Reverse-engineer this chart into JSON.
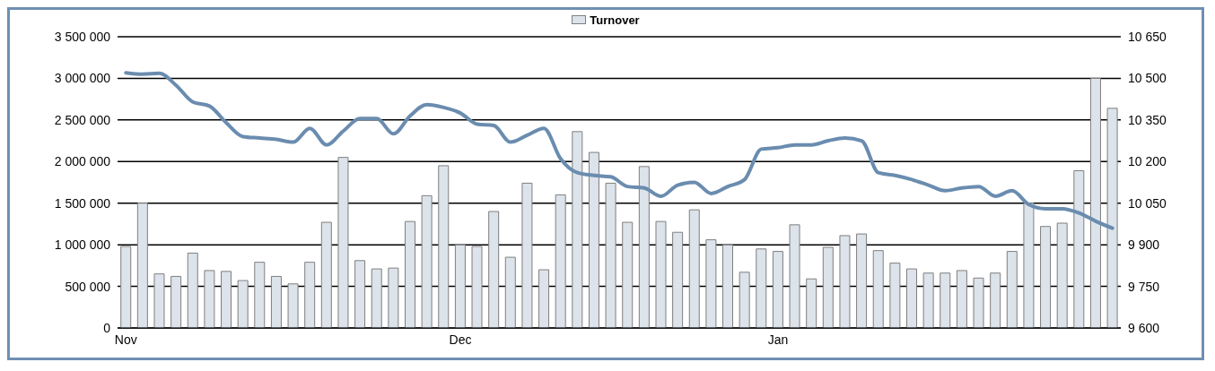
{
  "chart_data": {
    "type": "bar",
    "categories": [
      "Nov",
      null,
      null,
      null,
      null,
      null,
      null,
      null,
      null,
      null,
      null,
      null,
      null,
      null,
      null,
      null,
      null,
      null,
      null,
      null,
      "Dec",
      null,
      null,
      null,
      null,
      null,
      null,
      null,
      null,
      null,
      null,
      null,
      null,
      null,
      null,
      null,
      null,
      null,
      null,
      "Jan",
      null,
      null,
      null,
      null,
      null,
      null,
      null,
      null,
      null,
      null,
      null,
      null,
      null,
      null,
      null,
      null,
      null,
      null,
      null,
      null
    ],
    "series": [
      {
        "name": "Turnover",
        "color": "#dce3ea",
        "values": [
          980000,
          1500000,
          650000,
          620000,
          900000,
          690000,
          680000,
          570000,
          790000,
          620000,
          530000,
          790000,
          1270000,
          2050000,
          810000,
          710000,
          720000,
          1280000,
          1590000,
          1950000,
          1000000,
          980000,
          1400000,
          850000,
          1740000,
          700000,
          1600000,
          2360000,
          2110000,
          1740000,
          1270000,
          1940000,
          1280000,
          1150000,
          1420000,
          1060000,
          1000000,
          670000,
          950000,
          920000,
          1240000,
          590000,
          970000,
          1110000,
          1130000,
          930000,
          780000,
          710000,
          660000,
          660000,
          690000,
          600000,
          660000,
          920000,
          1500000,
          1220000,
          1260000,
          1890000,
          3000000,
          2640000
        ]
      },
      {
        "type": "line",
        "axis": "y2",
        "color": "#6a8caf",
        "values": [
          10520,
          10515,
          10518,
          10475,
          10415,
          10400,
          10340,
          10290,
          10285,
          10280,
          10270,
          10320,
          10260,
          10310,
          10355,
          10355,
          10300,
          10365,
          10405,
          10395,
          10375,
          10335,
          10330,
          10270,
          10295,
          10320,
          10210,
          10160,
          10150,
          10145,
          10110,
          10105,
          10075,
          10115,
          10125,
          10085,
          10110,
          10135,
          10245,
          10250,
          10260,
          10260,
          10275,
          10285,
          10275,
          10160,
          10150,
          10135,
          10115,
          10095,
          10105,
          10110,
          10075,
          10095,
          10045,
          10030,
          10030,
          10015,
          9985,
          9960
        ]
      }
    ],
    "ylim": [
      0,
      3500000
    ],
    "yticks": [
      {
        "value": 0,
        "label": "0"
      },
      {
        "value": 500000,
        "label": "500 000"
      },
      {
        "value": 1000000,
        "label": "1 000 000"
      },
      {
        "value": 1500000,
        "label": "1 500 000"
      },
      {
        "value": 2000000,
        "label": "2 000 000"
      },
      {
        "value": 2500000,
        "label": "2 500 000"
      },
      {
        "value": 3000000,
        "label": "3 000 000"
      },
      {
        "value": 3500000,
        "label": "3 500 000"
      }
    ],
    "y2lim": [
      9600,
      10650
    ],
    "y2ticks": [
      {
        "value": 9600,
        "label": "9 600"
      },
      {
        "value": 9750,
        "label": "9 750"
      },
      {
        "value": 9900,
        "label": "9 900"
      },
      {
        "value": 10050,
        "label": "10 050"
      },
      {
        "value": 10200,
        "label": "10 200"
      },
      {
        "value": 10350,
        "label": "10 350"
      },
      {
        "value": 10500,
        "label": "10 500"
      },
      {
        "value": 10650,
        "label": "10 650"
      }
    ],
    "grid": "y",
    "legend": "top"
  }
}
